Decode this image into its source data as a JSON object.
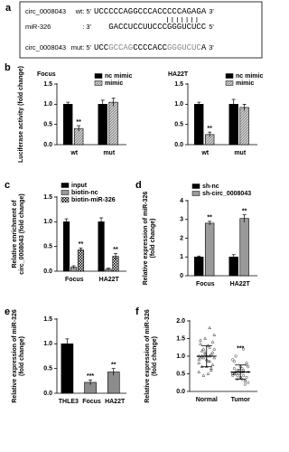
{
  "panel_a": {
    "label": "a",
    "rows": [
      {
        "name": "circ_0008043",
        "strand": "wt: 5'",
        "seq": [
          {
            "text": "UCCCCCAGGCCCACCCCCAGAGA",
            "color": "#000000"
          }
        ],
        "end": "3'"
      },
      {
        "name": "miR-326",
        "strand": ": 3'",
        "seq": [
          {
            "text": "GACCUCCUUCCCGGGUCUCC",
            "color": "#000000"
          }
        ],
        "end": "5'"
      },
      {
        "name": "circ_0008043",
        "strand": "mut: 5'",
        "seq": [
          {
            "text": "UCC",
            "color": "#000000"
          },
          {
            "text": "GCCAG",
            "color": "#8a8a8a"
          },
          {
            "text": "CCCCACC",
            "color": "#000000"
          },
          {
            "text": "GGGUCUC",
            "color": "#8a8a8a"
          },
          {
            "text": "A",
            "color": "#000000"
          }
        ],
        "end": "3'"
      }
    ]
  },
  "chart_data": [
    {
      "type": "bar",
      "panel": "b",
      "title": "Focus",
      "ylabel": "Luciferase activity (fold change)",
      "categories": [
        "wt",
        "mut"
      ],
      "series": [
        {
          "name": "nc mimic",
          "color": "#000000",
          "values": [
            1.0,
            1.0
          ],
          "errors": [
            0.05,
            0.1
          ]
        },
        {
          "name": "mimic",
          "color": "#9a9a9a",
          "pattern": "hatch",
          "values": [
            0.4,
            1.05
          ],
          "errors": [
            0.07,
            0.1
          ],
          "annotations": [
            "**",
            null
          ]
        }
      ],
      "ylim": [
        0,
        1.5
      ],
      "yticks": [
        {
          "value": 0,
          "label": "0.0"
        },
        {
          "value": 0.5,
          "label": "0.5"
        },
        {
          "value": 1,
          "label": "1.0"
        },
        {
          "value": 1.5,
          "label": "1.5"
        }
      ],
      "legend": "upper right"
    },
    {
      "type": "bar",
      "title": "HA22T",
      "categories": [
        "wt",
        "mut"
      ],
      "series": [
        {
          "name": "nc mimic",
          "color": "#000000",
          "values": [
            1.0,
            1.0
          ],
          "errors": [
            0.05,
            0.12
          ]
        },
        {
          "name": "mimic",
          "color": "#9a9a9a",
          "pattern": "hatch",
          "values": [
            0.25,
            0.92
          ],
          "errors": [
            0.06,
            0.08
          ],
          "annotations": [
            "**",
            null
          ]
        }
      ],
      "ylim": [
        0,
        1.5
      ],
      "yticks": [
        {
          "value": 0,
          "label": "0.0"
        },
        {
          "value": 0.5,
          "label": "0.5"
        },
        {
          "value": 1,
          "label": "1.0"
        },
        {
          "value": 1.5,
          "label": "1.5"
        }
      ],
      "legend": "upper right"
    },
    {
      "type": "bar",
      "panel": "c",
      "ylabel": [
        "Relative enrichment of",
        "circ_0008043 (fold change)"
      ],
      "categories": [
        "Focus",
        "HA22T"
      ],
      "series": [
        {
          "name": "input",
          "color": "#000000",
          "values": [
            1.0,
            1.0
          ],
          "errors": [
            0.06,
            0.08
          ]
        },
        {
          "name": "biotin-nc",
          "color": "#9a9a9a",
          "values": [
            0.08,
            0.04
          ],
          "errors": [
            0.03,
            0.02
          ]
        },
        {
          "name": "biotin-miR-326",
          "color": "#000000",
          "pattern": "checker",
          "values": [
            0.43,
            0.3
          ],
          "errors": [
            0.04,
            0.06
          ],
          "annotations": [
            "**",
            "**"
          ]
        }
      ],
      "ylim": [
        0,
        1.5
      ],
      "yticks": [
        {
          "value": 0,
          "label": "0.0"
        },
        {
          "value": 0.5,
          "label": "0.5"
        },
        {
          "value": 1,
          "label": "1.0"
        },
        {
          "value": 1.5,
          "label": "1.5"
        }
      ],
      "legend": "upper left"
    },
    {
      "type": "bar",
      "panel": "d",
      "ylabel": [
        "Relative expression of miR-326",
        "(fold change)"
      ],
      "categories": [
        "Focus",
        "HA22T"
      ],
      "series": [
        {
          "name": "sh-nc",
          "color": "#000000",
          "values": [
            1.0,
            1.0
          ],
          "errors": [
            0.05,
            0.12
          ]
        },
        {
          "name": "sh-circ_0008043",
          "color": "#9a9a9a",
          "values": [
            2.8,
            3.05
          ],
          "errors": [
            0.1,
            0.2
          ],
          "annotations": [
            "**",
            "**"
          ]
        }
      ],
      "ylim": [
        0,
        4
      ],
      "yticks": [
        0,
        1,
        2,
        3,
        4
      ],
      "legend": "upper left"
    },
    {
      "type": "bar",
      "panel": "e",
      "ylabel": [
        "Relative expression of miR-326",
        "(fold change)"
      ],
      "categories": [
        "THLE3",
        "Focus",
        "HA22T"
      ],
      "values": [
        1.0,
        0.22,
        0.43
      ],
      "errors": [
        0.1,
        0.05,
        0.07
      ],
      "annotations": [
        null,
        "***",
        "**"
      ],
      "colors": [
        "#000000",
        "#8c8c8c",
        "#8c8c8c"
      ],
      "ylim": [
        0,
        1.5
      ],
      "yticks": [
        {
          "value": 0,
          "label": "0.0"
        },
        {
          "value": 0.5,
          "label": "0.5"
        },
        {
          "value": 1,
          "label": "1.0"
        },
        {
          "value": 1.5,
          "label": "1.5"
        }
      ]
    },
    {
      "type": "dotplot",
      "panel": "f",
      "ylabel": [
        "Relative expression of miR-326",
        "(fold change)"
      ],
      "groups": [
        {
          "name": "Normal",
          "marker": "triangle",
          "color": "#333333",
          "mean": 1.0,
          "sd": 0.3,
          "values": [
            1.0,
            0.85,
            1.2,
            0.95,
            1.3,
            0.7,
            1.1,
            0.9,
            1.45,
            0.6,
            1.05,
            0.8,
            1.25,
            0.95,
            1.6,
            0.5,
            1.15,
            0.75,
            1.0,
            1.35,
            0.65,
            1.1,
            0.9,
            1.8,
            0.45,
            1.2,
            0.85,
            1.0,
            1.4,
            0.7,
            0.95,
            1.05,
            1.5,
            0.55,
            1.0
          ]
        },
        {
          "name": "Tumor",
          "marker": "circle",
          "color": "#333333",
          "mean": 0.55,
          "sd": 0.2,
          "annotation": "***",
          "values": [
            0.5,
            0.6,
            0.45,
            0.7,
            0.35,
            0.55,
            0.8,
            0.4,
            0.65,
            0.3,
            0.5,
            0.9,
            0.45,
            0.6,
            0.25,
            0.55,
            1.0,
            0.4,
            0.7,
            0.5,
            0.2,
            0.6,
            0.45,
            1.2,
            0.35,
            0.55,
            0.65,
            0.5,
            0.75,
            0.4,
            0.85,
            0.3,
            0.6,
            0.5,
            0.55
          ]
        }
      ],
      "ylim": [
        0,
        2
      ],
      "yticks": [
        {
          "value": 0,
          "label": "0.0"
        },
        {
          "value": 0.5,
          "label": "0.5"
        },
        {
          "value": 1,
          "label": "1.0"
        },
        {
          "value": 1.5,
          "label": "1.5"
        },
        {
          "value": 2,
          "label": "2.0"
        }
      ]
    }
  ]
}
